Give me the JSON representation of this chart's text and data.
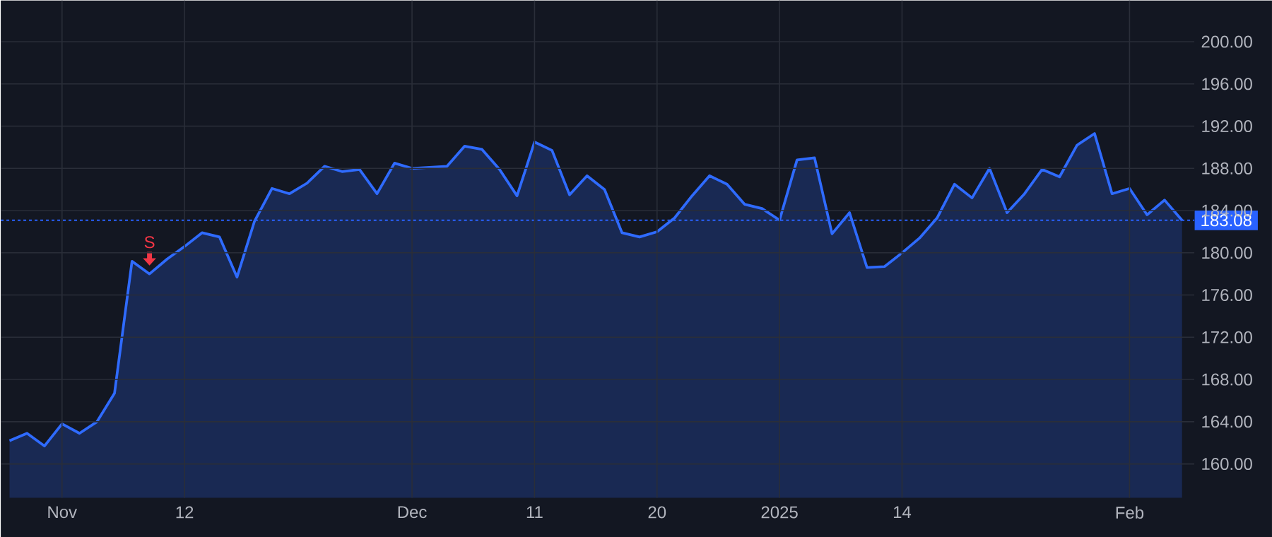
{
  "chart_data": {
    "type": "area",
    "categories": [
      null,
      null,
      null,
      "Nov",
      null,
      null,
      null,
      null,
      null,
      null,
      "12",
      null,
      null,
      null,
      null,
      null,
      null,
      null,
      null,
      null,
      null,
      null,
      null,
      "Dec",
      null,
      null,
      null,
      null,
      null,
      null,
      "11",
      null,
      null,
      null,
      null,
      null,
      null,
      "20",
      null,
      null,
      null,
      null,
      null,
      null,
      "2025",
      null,
      null,
      null,
      null,
      null,
      null,
      "14",
      null,
      null,
      null,
      null,
      null,
      null,
      null,
      null,
      null,
      null,
      null,
      null,
      "Feb",
      null,
      null,
      null
    ],
    "series": [
      {
        "color": "#2f6bff",
        "values": [
          162.2,
          162.9,
          161.7,
          163.8,
          162.9,
          164.0,
          166.7,
          179.2,
          178.0,
          179.4,
          180.6,
          181.9,
          181.5,
          177.7,
          183.0,
          186.1,
          185.6,
          186.6,
          188.2,
          187.7,
          187.9,
          185.6,
          188.5,
          188.0,
          188.1,
          188.2,
          190.1,
          189.8,
          187.9,
          185.4,
          190.5,
          189.7,
          185.5,
          187.3,
          186.0,
          181.9,
          181.5,
          182.0,
          183.3,
          185.4,
          187.3,
          186.5,
          184.6,
          184.2,
          183.1,
          188.8,
          189.0,
          181.8,
          183.8,
          178.6,
          178.7,
          180.0,
          181.4,
          183.3,
          186.5,
          185.2,
          188.0,
          183.8,
          185.6,
          187.9,
          187.2,
          190.2,
          191.3,
          185.6,
          186.1,
          183.6,
          185.0,
          183.08
        ]
      }
    ],
    "ylim": [
      156.8,
      203.9
    ],
    "yticks": [
      {
        "value": 160,
        "label": "160.00"
      },
      {
        "value": 164,
        "label": "164.00"
      },
      {
        "value": 168,
        "label": "168.00"
      },
      {
        "value": 172,
        "label": "172.00"
      },
      {
        "value": 176,
        "label": "176.00"
      },
      {
        "value": 180,
        "label": "180.00"
      },
      {
        "value": 184,
        "label": "184.00"
      },
      {
        "value": 188,
        "label": "188.00"
      },
      {
        "value": 192,
        "label": "192.00"
      },
      {
        "value": 196,
        "label": "196.00"
      },
      {
        "value": 200,
        "label": "200.00"
      }
    ],
    "grid": true,
    "ref_lines": [
      {
        "axis": "y",
        "value": 183.08,
        "label": "183.08",
        "color": "#2962ff",
        "line_style": "dotted"
      }
    ],
    "annotations": [
      {
        "text": "S",
        "y": 178.0
      }
    ]
  }
}
